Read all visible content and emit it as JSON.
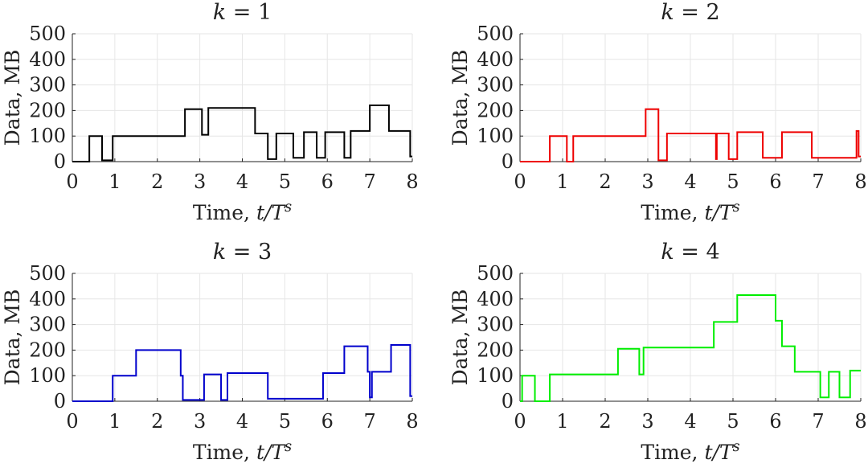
{
  "chart_data": [
    {
      "type": "line",
      "step": true,
      "title": "k = 1",
      "xlabel": "Time, t/T^s",
      "ylabel": "Data, MB",
      "xlim": [
        0,
        8
      ],
      "ylim": [
        0,
        500
      ],
      "xticks": [
        0,
        1,
        2,
        3,
        4,
        5,
        6,
        7,
        8
      ],
      "yticks": [
        0,
        100,
        200,
        300,
        400,
        500
      ],
      "grid": true,
      "color": "#000000",
      "x": [
        0,
        0.4,
        0.4,
        0.7,
        0.7,
        0.95,
        0.95,
        2.65,
        2.65,
        3.05,
        3.05,
        3.2,
        3.2,
        4.3,
        4.3,
        4.6,
        4.6,
        4.8,
        4.8,
        5.2,
        5.2,
        5.45,
        5.45,
        5.75,
        5.75,
        5.95,
        5.95,
        6.4,
        6.4,
        6.55,
        6.55,
        7.0,
        7.0,
        7.45,
        7.45,
        7.95,
        7.95,
        8.0
      ],
      "y": [
        0,
        0,
        100,
        100,
        5,
        5,
        100,
        100,
        205,
        205,
        105,
        105,
        210,
        210,
        110,
        110,
        10,
        10,
        110,
        110,
        15,
        15,
        115,
        115,
        15,
        15,
        115,
        115,
        15,
        15,
        120,
        120,
        220,
        220,
        120,
        120,
        20,
        20
      ]
    },
    {
      "type": "line",
      "step": true,
      "title": "k = 2",
      "xlabel": "Time, t/T^s",
      "ylabel": "Data, MB",
      "xlim": [
        0,
        8
      ],
      "ylim": [
        0,
        500
      ],
      "xticks": [
        0,
        1,
        2,
        3,
        4,
        5,
        6,
        7,
        8
      ],
      "yticks": [
        0,
        100,
        200,
        300,
        400,
        500
      ],
      "grid": true,
      "color": "#ee0000",
      "x": [
        0,
        0.7,
        0.7,
        1.1,
        1.1,
        1.25,
        1.25,
        2.95,
        2.95,
        3.25,
        3.25,
        3.45,
        3.45,
        4.6,
        4.6,
        4.62,
        4.62,
        4.9,
        4.9,
        5.1,
        5.1,
        5.7,
        5.7,
        6.15,
        6.15,
        6.85,
        6.85,
        7.9,
        7.9,
        7.95,
        7.95,
        8.0
      ],
      "y": [
        0,
        0,
        100,
        100,
        0,
        0,
        100,
        100,
        205,
        205,
        5,
        5,
        110,
        110,
        10,
        10,
        110,
        110,
        10,
        10,
        115,
        115,
        15,
        15,
        115,
        115,
        15,
        15,
        120,
        120,
        20,
        20
      ]
    },
    {
      "type": "line",
      "step": true,
      "title": "k = 3",
      "xlabel": "Time, t/T^s",
      "ylabel": "Data, MB",
      "xlim": [
        0,
        8
      ],
      "ylim": [
        0,
        500
      ],
      "xticks": [
        0,
        1,
        2,
        3,
        4,
        5,
        6,
        7,
        8
      ],
      "yticks": [
        0,
        100,
        200,
        300,
        400,
        500
      ],
      "grid": true,
      "color": "#0000cc",
      "x": [
        0,
        0.95,
        0.95,
        1.5,
        1.5,
        2.55,
        2.55,
        2.6,
        2.6,
        3.1,
        3.1,
        3.5,
        3.5,
        3.65,
        3.65,
        4.6,
        4.6,
        5.9,
        5.9,
        6.4,
        6.4,
        6.95,
        6.95,
        7.0,
        7.0,
        7.05,
        7.05,
        7.5,
        7.5,
        7.95,
        7.95,
        8.0
      ],
      "y": [
        0,
        0,
        100,
        100,
        200,
        200,
        100,
        100,
        5,
        5,
        105,
        105,
        5,
        5,
        110,
        110,
        10,
        10,
        110,
        110,
        215,
        215,
        115,
        115,
        15,
        15,
        115,
        115,
        220,
        220,
        20,
        20
      ]
    },
    {
      "type": "line",
      "step": true,
      "title": "k = 4",
      "xlabel": "Time, t/T^s",
      "ylabel": "Data, MB",
      "xlim": [
        0,
        8
      ],
      "ylim": [
        0,
        500
      ],
      "xticks": [
        0,
        1,
        2,
        3,
        4,
        5,
        6,
        7,
        8
      ],
      "yticks": [
        0,
        100,
        200,
        300,
        400,
        500
      ],
      "grid": true,
      "color": "#00ee00",
      "x": [
        0,
        0.05,
        0.05,
        0.35,
        0.35,
        0.7,
        0.7,
        2.3,
        2.3,
        2.8,
        2.8,
        2.9,
        2.9,
        4.55,
        4.55,
        5.1,
        5.1,
        6.0,
        6.0,
        6.15,
        6.15,
        6.45,
        6.45,
        7.05,
        7.05,
        7.25,
        7.25,
        7.5,
        7.5,
        7.75,
        7.75,
        8.0
      ],
      "y": [
        0,
        0,
        100,
        100,
        0,
        0,
        105,
        105,
        205,
        205,
        105,
        105,
        210,
        210,
        310,
        310,
        415,
        415,
        315,
        315,
        215,
        215,
        115,
        115,
        15,
        15,
        115,
        115,
        15,
        15,
        120,
        120
      ]
    }
  ]
}
